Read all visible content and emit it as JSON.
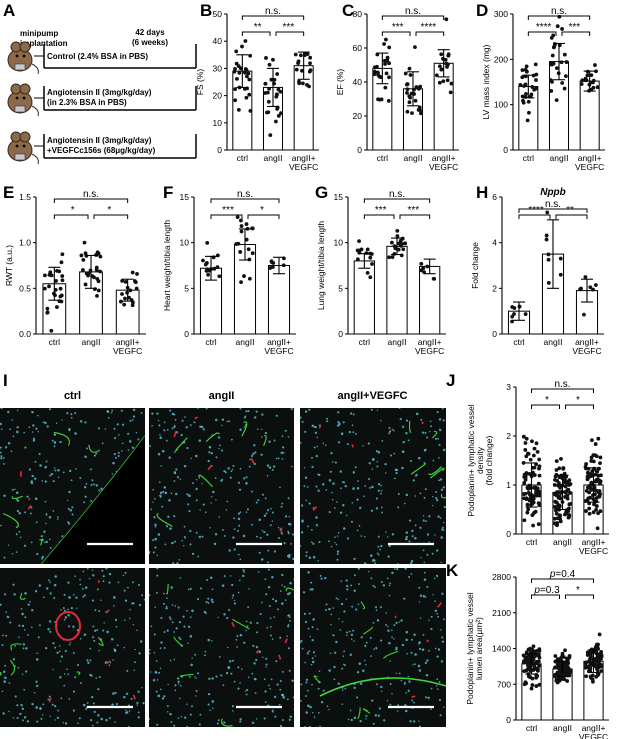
{
  "panel_labels": {
    "A": "A",
    "B": "B",
    "C": "C",
    "D": "D",
    "E": "E",
    "F": "F",
    "G": "G",
    "H": "H",
    "I": "I",
    "J": "J",
    "K": "K"
  },
  "schematic": {
    "implant_label": "minipump\nimplantation",
    "duration": "42 days\n(6 weeks)",
    "groups": [
      "Control (2.4% BSA in PBS)",
      "Angiotensin II (3mg/kg/day)\n(in 2.3% BSA in PBS)",
      "Angiotensin II (3mg/kg/day)\n+VEGFCc156s (68μg/kg/day)"
    ],
    "icon": "mouse-icon"
  },
  "histology": {
    "column_titles": [
      "ctrl",
      "angII",
      "angII+VEGFC"
    ],
    "colors": {
      "background": "#0b0f0d",
      "nuclei": "#5fd0e8",
      "lymphatic": "#3ddc3d",
      "vessel": "#e8283c",
      "scalebar": "#ffffff"
    }
  },
  "colors": {
    "dot": "#111111",
    "bar": "#ffffff",
    "line": "#000000"
  },
  "chart_data": [
    {
      "id": "B",
      "type": "bar",
      "categories": [
        "ctrl",
        "angII",
        "angII+\nVEGFC"
      ],
      "ylabel": "FS (%)",
      "ylim": [
        0,
        50
      ],
      "yticks": [
        0,
        10,
        20,
        30,
        40,
        50
      ],
      "values": [
        29,
        23,
        31
      ],
      "errors": [
        6,
        7,
        5
      ],
      "n": [
        26,
        26,
        18
      ],
      "sig": [
        {
          "a": 0,
          "b": 1,
          "label": "**"
        },
        {
          "a": 1,
          "b": 2,
          "label": "***"
        },
        {
          "a": 0,
          "b": 2,
          "label": "n.s."
        }
      ]
    },
    {
      "id": "C",
      "type": "bar",
      "categories": [
        "ctrl",
        "angII",
        "angII+\nVEGFC"
      ],
      "ylabel": "EF (%)",
      "ylim": [
        0,
        80
      ],
      "yticks": [
        0,
        20,
        40,
        60,
        80
      ],
      "values": [
        48,
        36,
        51
      ],
      "errors": [
        9,
        10,
        8
      ],
      "n": [
        26,
        26,
        18
      ],
      "sig": [
        {
          "a": 0,
          "b": 1,
          "label": "***"
        },
        {
          "a": 1,
          "b": 2,
          "label": "****"
        },
        {
          "a": 0,
          "b": 2,
          "label": "n.s."
        }
      ]
    },
    {
      "id": "D",
      "type": "bar",
      "categories": [
        "ctrl",
        "angII",
        "angII+\nVEGFC"
      ],
      "ylabel": "LV mass index (mg)",
      "ylim": [
        0,
        300
      ],
      "yticks": [
        0,
        100,
        200,
        300
      ],
      "values": [
        140,
        195,
        152
      ],
      "errors": [
        25,
        40,
        22
      ],
      "n": [
        26,
        26,
        18
      ],
      "sig": [
        {
          "a": 0,
          "b": 1,
          "label": "****"
        },
        {
          "a": 1,
          "b": 2,
          "label": "***"
        },
        {
          "a": 0,
          "b": 2,
          "label": "n.s."
        }
      ]
    },
    {
      "id": "E",
      "type": "bar",
      "categories": [
        "ctrl",
        "angII",
        "angII+\nVEGFC"
      ],
      "ylabel": "RWT (a.u.)",
      "ylim": [
        0,
        1.5
      ],
      "yticks": [
        0.0,
        0.5,
        1.0,
        1.5
      ],
      "values": [
        0.55,
        0.68,
        0.48
      ],
      "errors": [
        0.18,
        0.18,
        0.12
      ],
      "n": [
        26,
        26,
        18
      ],
      "sig": [
        {
          "a": 0,
          "b": 1,
          "label": "*"
        },
        {
          "a": 1,
          "b": 2,
          "label": "*"
        },
        {
          "a": 0,
          "b": 2,
          "label": "n.s."
        }
      ]
    },
    {
      "id": "F",
      "type": "bar",
      "categories": [
        "ctrl",
        "angII",
        "angII+\nVEGFC"
      ],
      "ylabel": "Heart weight/tibia length",
      "ylim": [
        0,
        15
      ],
      "yticks": [
        0,
        5,
        10,
        15
      ],
      "values": [
        7.2,
        9.8,
        7.5
      ],
      "errors": [
        1.3,
        1.7,
        0.9
      ],
      "n": [
        14,
        18,
        7
      ],
      "sig": [
        {
          "a": 0,
          "b": 1,
          "label": "***"
        },
        {
          "a": 1,
          "b": 2,
          "label": "*"
        },
        {
          "a": 0,
          "b": 2,
          "label": "n.s."
        }
      ]
    },
    {
      "id": "G",
      "type": "bar",
      "categories": [
        "ctrl",
        "angII",
        "angII+\nVEGFC"
      ],
      "ylabel": "Lung weight/tibia length",
      "ylim": [
        0,
        15
      ],
      "yticks": [
        0,
        5,
        10,
        15
      ],
      "values": [
        8.0,
        9.6,
        7.4
      ],
      "errors": [
        0.8,
        0.9,
        0.8
      ],
      "n": [
        14,
        18,
        7
      ],
      "sig": [
        {
          "a": 0,
          "b": 1,
          "label": "***"
        },
        {
          "a": 1,
          "b": 2,
          "label": "***"
        },
        {
          "a": 0,
          "b": 2,
          "label": "n.s."
        }
      ]
    },
    {
      "id": "H",
      "type": "bar",
      "title": "Nppb",
      "categories": [
        "ctrl",
        "angII",
        "angII+\nVEGFC"
      ],
      "ylabel": "Fold change",
      "ylim": [
        0,
        6
      ],
      "yticks": [
        0,
        2,
        4,
        6
      ],
      "values": [
        1.0,
        3.5,
        1.9
      ],
      "errors": [
        0.4,
        1.5,
        0.5
      ],
      "n": [
        7,
        8,
        7
      ],
      "sig": [
        {
          "a": 0,
          "b": 1,
          "label": "****"
        },
        {
          "a": 1,
          "b": 2,
          "label": "**"
        },
        {
          "a": 0,
          "b": 2,
          "label": "n.s."
        }
      ]
    },
    {
      "id": "J",
      "type": "bar",
      "categories": [
        "ctrl",
        "angII",
        "angII+\nVEGFC"
      ],
      "ylabel": "Podoplanin+ lymphatic vessel\ndensity\n(fold change)",
      "ylim": [
        0,
        3
      ],
      "yticks": [
        0,
        1,
        2,
        3
      ],
      "values": [
        1.0,
        0.85,
        1.0
      ],
      "errors": [
        0.45,
        0.35,
        0.35
      ],
      "n": [
        80,
        90,
        85
      ],
      "sig": [
        {
          "a": 0,
          "b": 1,
          "label": "*"
        },
        {
          "a": 1,
          "b": 2,
          "label": "*"
        },
        {
          "a": 0,
          "b": 2,
          "label": "n.s."
        }
      ]
    },
    {
      "id": "K",
      "type": "bar",
      "categories": [
        "ctrl",
        "angII",
        "angII+\nVEGFC"
      ],
      "ylabel": "Podoplanin+ lymphatic vessel\nlumen area(μm²)",
      "ylim": [
        0,
        2800
      ],
      "yticks": [
        0,
        700,
        1400,
        2100,
        2800
      ],
      "values": [
        1100,
        1000,
        1150
      ],
      "errors": [
        200,
        150,
        220
      ],
      "n": [
        80,
        90,
        85
      ],
      "sig": [
        {
          "a": 0,
          "b": 1,
          "label": "p=0.3",
          "italic_p": true
        },
        {
          "a": 1,
          "b": 2,
          "label": "*"
        },
        {
          "a": 0,
          "b": 2,
          "label": "p=0.4",
          "italic_p": true
        }
      ]
    }
  ]
}
